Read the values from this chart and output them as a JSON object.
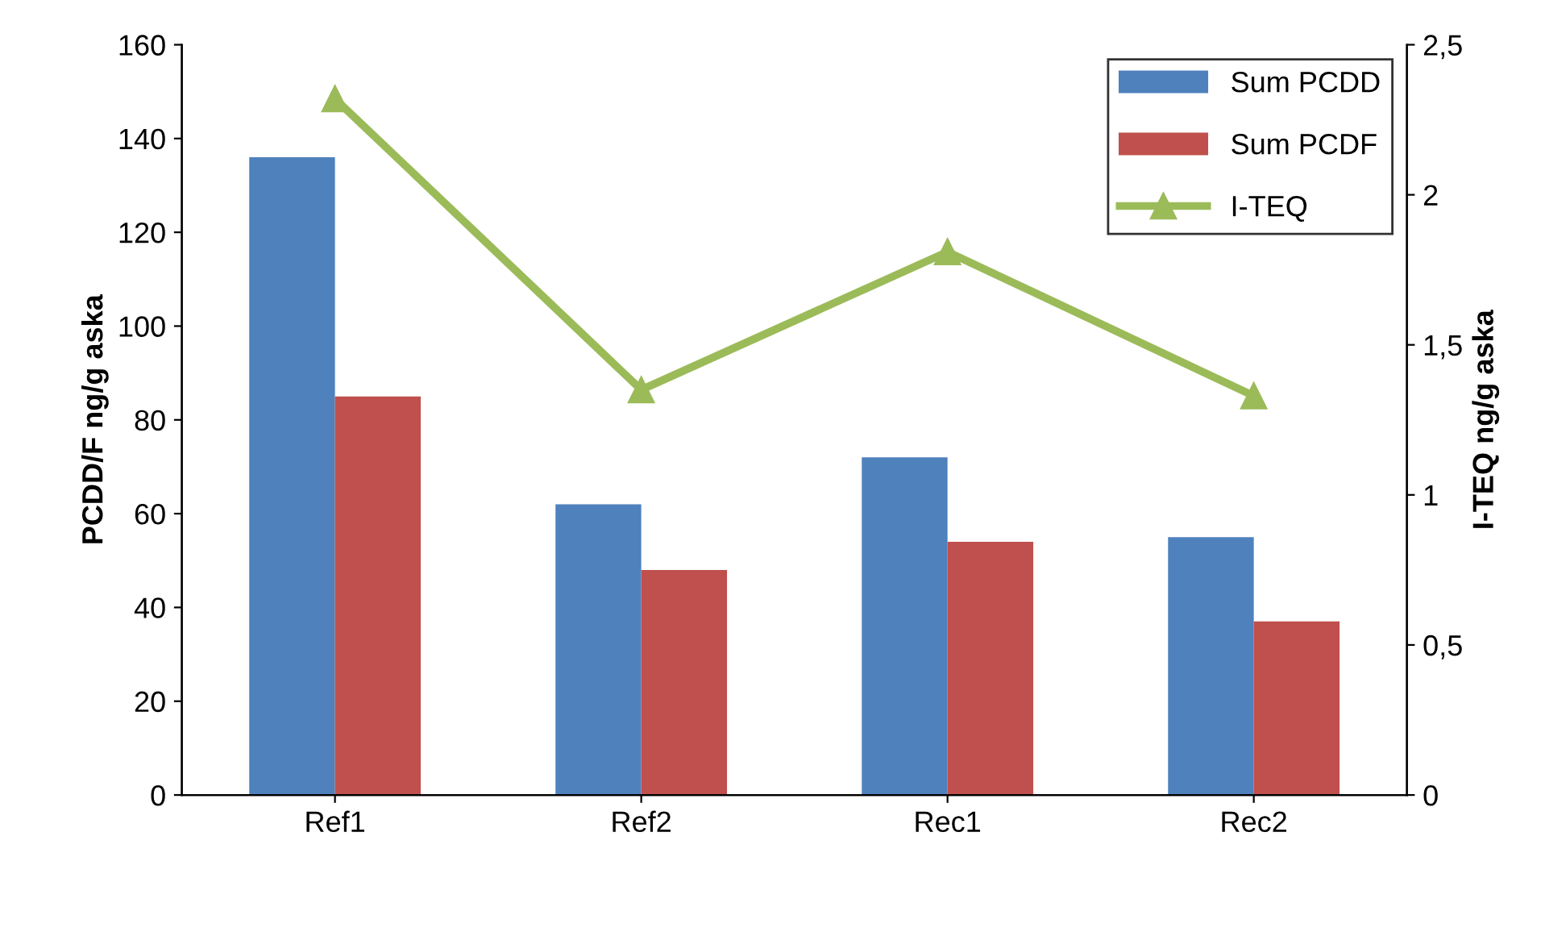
{
  "chart_data": {
    "type": "bar",
    "ylabel": "PCDD/F ng/g aska",
    "y2label": "I-TEQ ng/g aska",
    "categories": [
      "Ref1",
      "Ref2",
      "Rec1",
      "Rec2"
    ],
    "series": [
      {
        "name": "Sum PCDD",
        "color": "#4f81bd",
        "values": [
          136,
          62,
          72,
          55
        ]
      },
      {
        "name": "Sum PCDF",
        "color": "#c0504d",
        "values": [
          85,
          48,
          54,
          37
        ]
      },
      {
        "name": "I-TEQ",
        "type": "line",
        "axis": "y2",
        "color": "#9bbb59",
        "marker": "triangle",
        "values": [
          2.32,
          1.35,
          1.81,
          1.33
        ]
      }
    ],
    "ylim": [
      0,
      160
    ],
    "yticks": [
      0,
      20,
      40,
      60,
      80,
      100,
      120,
      140,
      160
    ],
    "y2lim": [
      0,
      2.5
    ],
    "y2ticks": [
      0,
      {
        "value": 0.5,
        "label": "0,5"
      },
      1,
      {
        "value": 1.5,
        "label": "1,5"
      },
      2,
      {
        "value": 2.5,
        "label": "2,5"
      }
    ],
    "grid": false,
    "legend": "top right"
  }
}
